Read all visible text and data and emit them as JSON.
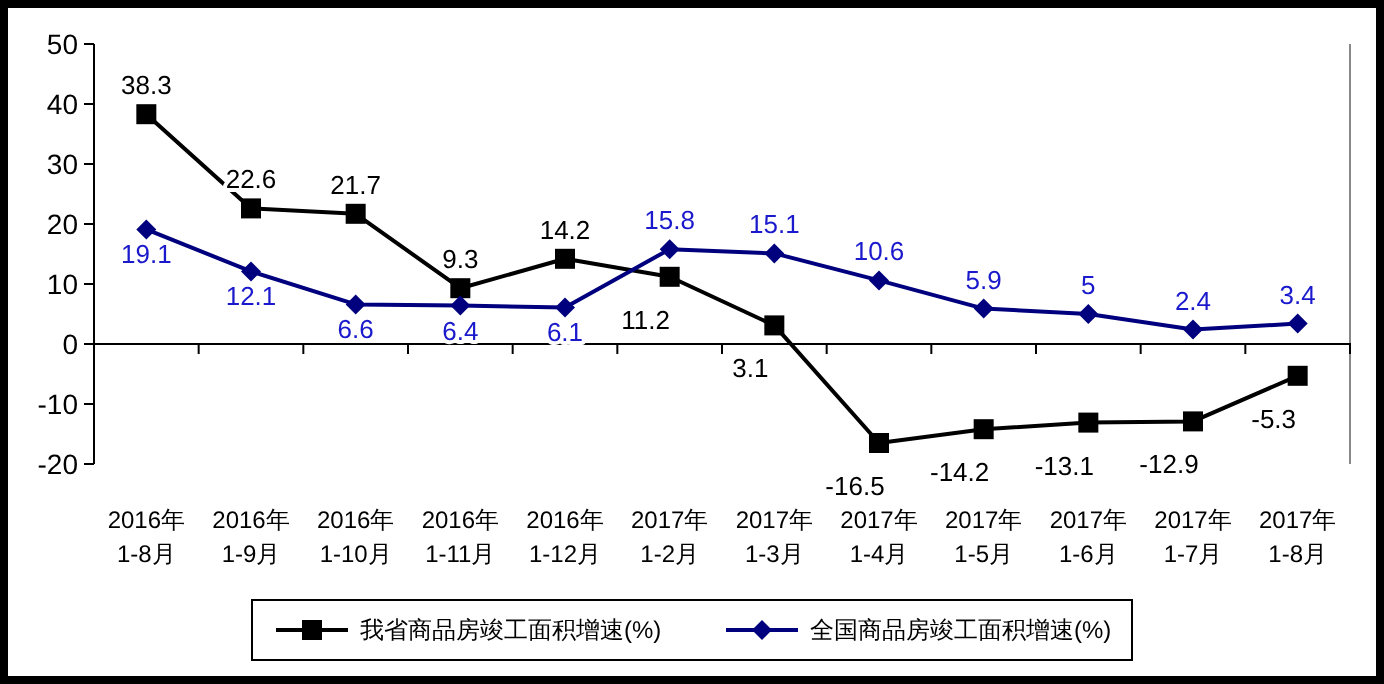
{
  "chart_data": {
    "type": "line",
    "categories": [
      "2016年\n1-8月",
      "2016年\n1-9月",
      "2016年\n1-10月",
      "2016年\n1-11月",
      "2016年\n1-12月",
      "2017年\n1-2月",
      "2017年\n1-3月",
      "2017年\n1-4月",
      "2017年\n1-5月",
      "2017年\n1-6月",
      "2017年\n1-7月",
      "2017年\n1-8月"
    ],
    "series": [
      {
        "name": "我省商品房竣工面积增速(%)",
        "color": "#000000",
        "marker": "square",
        "values": [
          38.3,
          22.6,
          21.7,
          9.3,
          14.2,
          11.2,
          3.1,
          -16.5,
          -14.2,
          -13.1,
          -12.9,
          -5.3
        ]
      },
      {
        "name": "全国商品房竣工面积增速(%)",
        "color": "#00007f",
        "marker": "diamond",
        "values": [
          19.1,
          12.1,
          6.6,
          6.4,
          6.1,
          15.8,
          15.1,
          10.6,
          5.9,
          5,
          2.4,
          3.4
        ]
      }
    ],
    "ylim": [
      -20,
      50
    ],
    "yticks": [
      -20,
      -10,
      0,
      10,
      20,
      30,
      40,
      50
    ],
    "grid": false,
    "legend": "bottom",
    "data_labels": true,
    "line_style": "solid"
  }
}
